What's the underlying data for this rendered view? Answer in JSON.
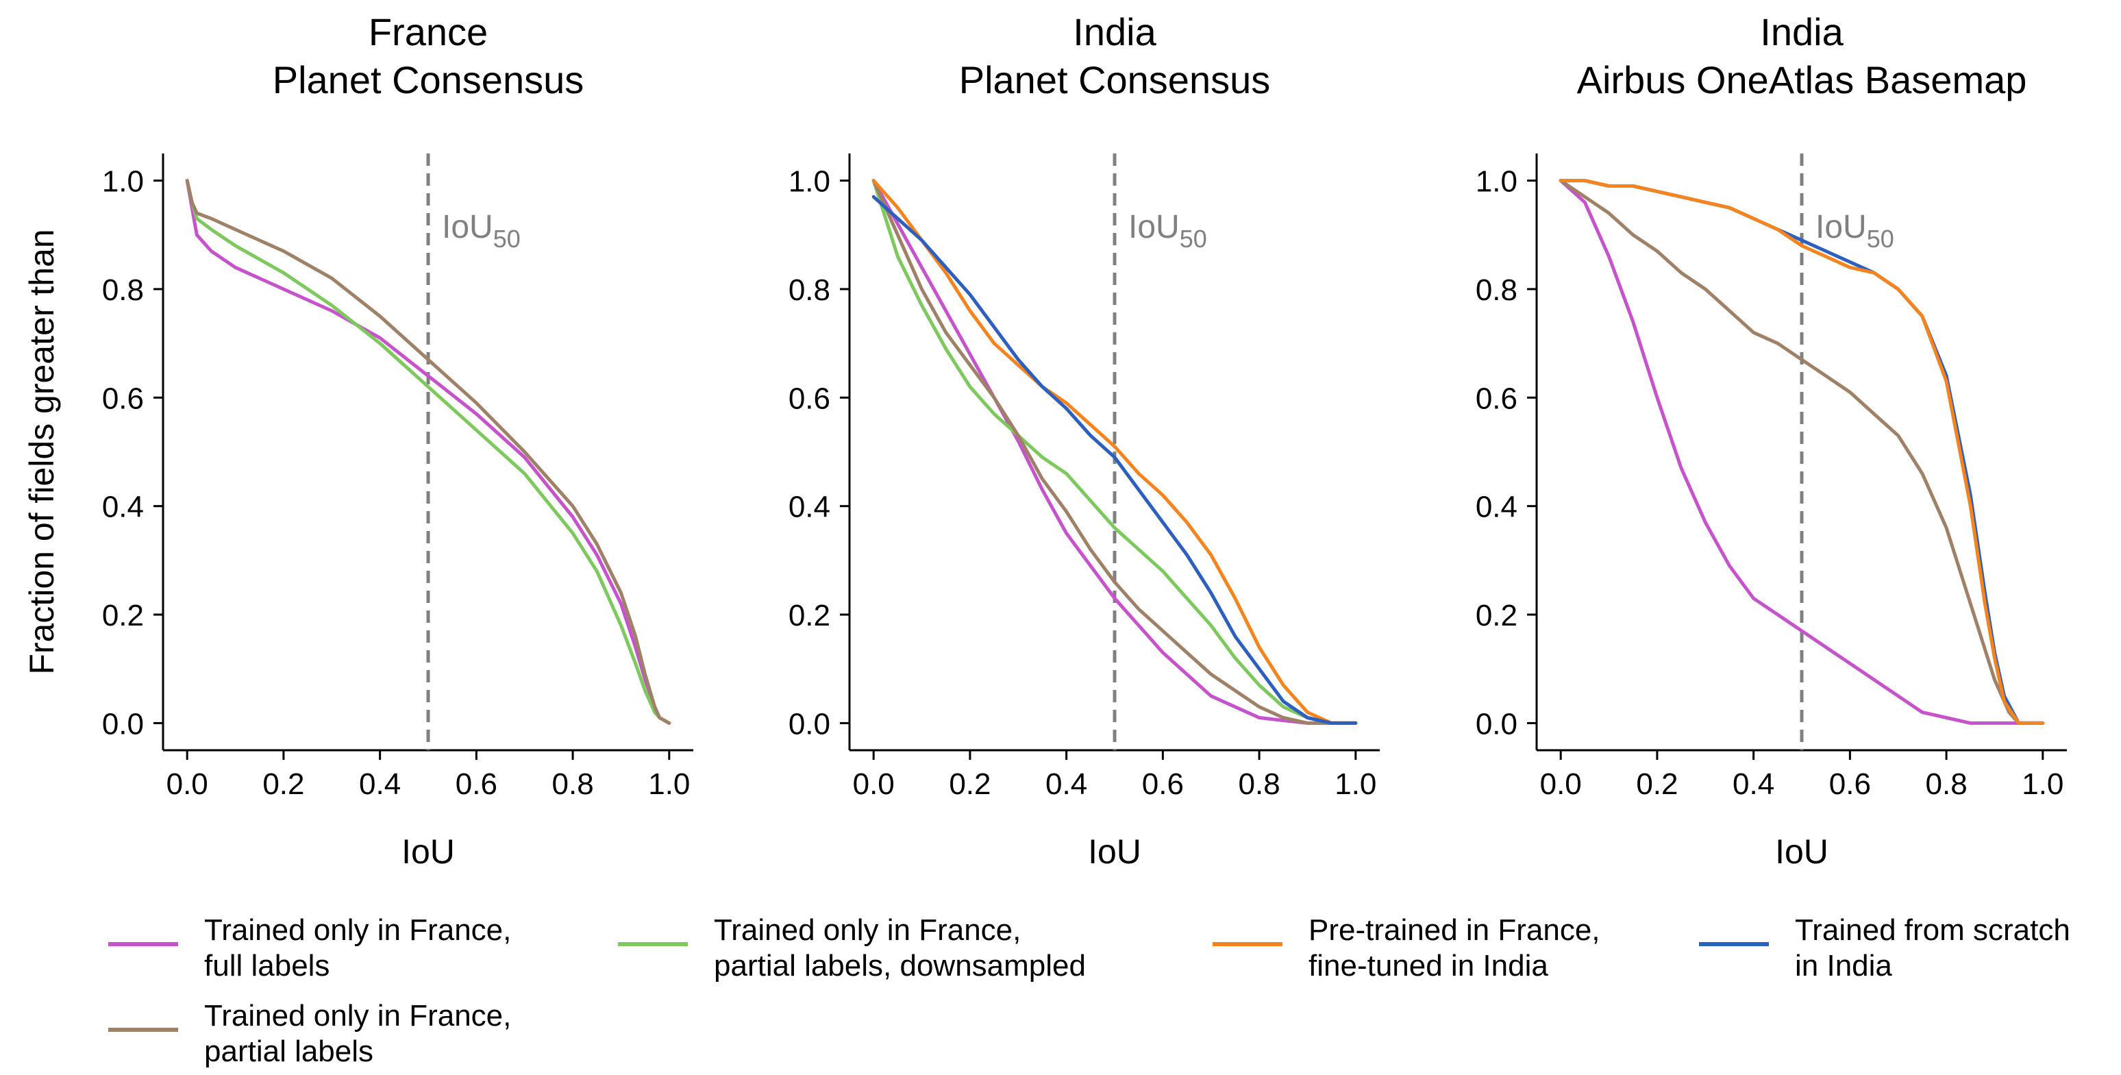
{
  "chart_data": [
    {
      "type": "line",
      "title": [
        "France",
        "Planet Consensus"
      ],
      "xlabel": "IoU",
      "ylabel": "Fraction of fields greater than",
      "xlim": [
        -0.05,
        1.05
      ],
      "ylim": [
        -0.05,
        1.05
      ],
      "xticks": [
        "0.0",
        "0.2",
        "0.4",
        "0.6",
        "0.8",
        "1.0"
      ],
      "yticks": [
        "0.0",
        "0.2",
        "0.4",
        "0.6",
        "0.8",
        "1.0"
      ],
      "reference_line": {
        "x": 0.5,
        "label": "IoU",
        "subscript": "50"
      },
      "series": [
        {
          "key": "full",
          "x": [
            0,
            0.01,
            0.02,
            0.05,
            0.1,
            0.2,
            0.3,
            0.4,
            0.5,
            0.6,
            0.7,
            0.8,
            0.85,
            0.9,
            0.93,
            0.95,
            0.97,
            0.98,
            1.0
          ],
          "y": [
            1.0,
            0.95,
            0.9,
            0.87,
            0.84,
            0.8,
            0.76,
            0.71,
            0.64,
            0.57,
            0.49,
            0.38,
            0.31,
            0.22,
            0.14,
            0.08,
            0.03,
            0.01,
            0.0
          ]
        },
        {
          "key": "partial_down",
          "x": [
            0,
            0.01,
            0.02,
            0.05,
            0.1,
            0.2,
            0.3,
            0.4,
            0.5,
            0.6,
            0.7,
            0.8,
            0.85,
            0.9,
            0.93,
            0.95,
            0.97,
            0.98,
            1.0
          ],
          "y": [
            1.0,
            0.96,
            0.93,
            0.91,
            0.88,
            0.83,
            0.77,
            0.7,
            0.62,
            0.54,
            0.46,
            0.35,
            0.28,
            0.18,
            0.11,
            0.06,
            0.02,
            0.01,
            0.0
          ]
        },
        {
          "key": "partial",
          "x": [
            0,
            0.01,
            0.02,
            0.05,
            0.1,
            0.2,
            0.3,
            0.4,
            0.5,
            0.6,
            0.7,
            0.8,
            0.85,
            0.9,
            0.93,
            0.95,
            0.97,
            0.98,
            1.0
          ],
          "y": [
            1.0,
            0.96,
            0.94,
            0.93,
            0.91,
            0.87,
            0.82,
            0.75,
            0.67,
            0.59,
            0.5,
            0.4,
            0.33,
            0.24,
            0.16,
            0.09,
            0.03,
            0.01,
            0.0
          ]
        }
      ]
    },
    {
      "type": "line",
      "title": [
        "India",
        "Planet Consensus"
      ],
      "xlabel": "IoU",
      "xlim": [
        -0.05,
        1.05
      ],
      "ylim": [
        -0.05,
        1.05
      ],
      "xticks": [
        "0.0",
        "0.2",
        "0.4",
        "0.6",
        "0.8",
        "1.0"
      ],
      "yticks": [
        "0.0",
        "0.2",
        "0.4",
        "0.6",
        "0.8",
        "1.0"
      ],
      "reference_line": {
        "x": 0.5,
        "label": "IoU",
        "subscript": "50"
      },
      "series": [
        {
          "key": "full",
          "x": [
            0,
            0.05,
            0.1,
            0.15,
            0.2,
            0.25,
            0.3,
            0.35,
            0.4,
            0.45,
            0.5,
            0.55,
            0.6,
            0.65,
            0.7,
            0.75,
            0.8,
            0.85,
            0.9,
            1.0
          ],
          "y": [
            1.0,
            0.92,
            0.84,
            0.76,
            0.68,
            0.6,
            0.52,
            0.43,
            0.35,
            0.29,
            0.23,
            0.18,
            0.13,
            0.09,
            0.05,
            0.03,
            0.01,
            0.005,
            0.0,
            0.0
          ]
        },
        {
          "key": "partial_down",
          "x": [
            0,
            0.05,
            0.1,
            0.15,
            0.2,
            0.25,
            0.3,
            0.35,
            0.4,
            0.45,
            0.5,
            0.55,
            0.6,
            0.65,
            0.7,
            0.75,
            0.8,
            0.85,
            0.9,
            0.95,
            1.0
          ],
          "y": [
            1.0,
            0.86,
            0.77,
            0.69,
            0.62,
            0.57,
            0.53,
            0.49,
            0.46,
            0.41,
            0.36,
            0.32,
            0.28,
            0.23,
            0.18,
            0.12,
            0.07,
            0.03,
            0.01,
            0.0,
            0.0
          ]
        },
        {
          "key": "partial",
          "x": [
            0,
            0.05,
            0.1,
            0.15,
            0.2,
            0.25,
            0.3,
            0.35,
            0.4,
            0.45,
            0.5,
            0.55,
            0.6,
            0.65,
            0.7,
            0.75,
            0.8,
            0.85,
            0.9,
            0.95,
            1.0
          ],
          "y": [
            1.0,
            0.9,
            0.8,
            0.72,
            0.66,
            0.6,
            0.53,
            0.45,
            0.39,
            0.32,
            0.26,
            0.21,
            0.17,
            0.13,
            0.09,
            0.06,
            0.03,
            0.01,
            0.0,
            0.0,
            0.0
          ]
        },
        {
          "key": "pretrained",
          "x": [
            0,
            0.05,
            0.1,
            0.15,
            0.2,
            0.25,
            0.3,
            0.35,
            0.4,
            0.45,
            0.5,
            0.55,
            0.6,
            0.65,
            0.7,
            0.75,
            0.8,
            0.85,
            0.9,
            0.95,
            1.0
          ],
          "y": [
            1.0,
            0.95,
            0.89,
            0.83,
            0.76,
            0.7,
            0.66,
            0.62,
            0.59,
            0.55,
            0.51,
            0.46,
            0.42,
            0.37,
            0.31,
            0.23,
            0.14,
            0.07,
            0.02,
            0.0,
            0.0
          ]
        },
        {
          "key": "scratch",
          "x": [
            0,
            0.05,
            0.1,
            0.15,
            0.2,
            0.25,
            0.3,
            0.35,
            0.4,
            0.45,
            0.5,
            0.55,
            0.6,
            0.65,
            0.7,
            0.75,
            0.8,
            0.85,
            0.9,
            0.95,
            1.0
          ],
          "y": [
            0.97,
            0.93,
            0.89,
            0.84,
            0.79,
            0.73,
            0.67,
            0.62,
            0.58,
            0.53,
            0.49,
            0.43,
            0.37,
            0.31,
            0.24,
            0.16,
            0.1,
            0.04,
            0.01,
            0.0,
            0.0
          ]
        }
      ]
    },
    {
      "type": "line",
      "title": [
        "India",
        "Airbus OneAtlas Basemap"
      ],
      "xlabel": "IoU",
      "xlim": [
        -0.05,
        1.05
      ],
      "ylim": [
        -0.05,
        1.05
      ],
      "xticks": [
        "0.0",
        "0.2",
        "0.4",
        "0.6",
        "0.8",
        "1.0"
      ],
      "yticks": [
        "0.0",
        "0.2",
        "0.4",
        "0.6",
        "0.8",
        "1.0"
      ],
      "reference_line": {
        "x": 0.5,
        "label": "IoU",
        "subscript": "50"
      },
      "series": [
        {
          "key": "full",
          "x": [
            0,
            0.05,
            0.1,
            0.15,
            0.2,
            0.25,
            0.3,
            0.35,
            0.4,
            0.45,
            0.5,
            0.55,
            0.6,
            0.65,
            0.7,
            0.75,
            0.8,
            0.85,
            0.9,
            0.95,
            1.0
          ],
          "y": [
            1.0,
            0.96,
            0.86,
            0.74,
            0.6,
            0.47,
            0.37,
            0.29,
            0.23,
            0.2,
            0.17,
            0.14,
            0.11,
            0.08,
            0.05,
            0.02,
            0.01,
            0.0,
            0.0,
            0.0,
            0.0
          ]
        },
        {
          "key": "partial",
          "x": [
            0,
            0.05,
            0.1,
            0.15,
            0.2,
            0.25,
            0.3,
            0.35,
            0.4,
            0.45,
            0.5,
            0.55,
            0.6,
            0.65,
            0.7,
            0.75,
            0.8,
            0.85,
            0.9,
            0.93,
            0.95,
            1.0
          ],
          "y": [
            1.0,
            0.97,
            0.94,
            0.9,
            0.87,
            0.83,
            0.8,
            0.76,
            0.72,
            0.7,
            0.67,
            0.64,
            0.61,
            0.57,
            0.53,
            0.46,
            0.36,
            0.22,
            0.08,
            0.02,
            0.0,
            0.0
          ]
        },
        {
          "key": "scratch",
          "x": [
            0,
            0.05,
            0.1,
            0.15,
            0.2,
            0.25,
            0.3,
            0.35,
            0.4,
            0.45,
            0.5,
            0.55,
            0.6,
            0.65,
            0.7,
            0.75,
            0.8,
            0.85,
            0.88,
            0.9,
            0.92,
            0.95,
            1.0
          ],
          "y": [
            1.0,
            1.0,
            0.99,
            0.99,
            0.98,
            0.97,
            0.96,
            0.95,
            0.93,
            0.91,
            0.89,
            0.87,
            0.85,
            0.83,
            0.8,
            0.75,
            0.64,
            0.42,
            0.24,
            0.13,
            0.05,
            0.0,
            0.0
          ]
        },
        {
          "key": "pretrained",
          "x": [
            0,
            0.05,
            0.1,
            0.15,
            0.2,
            0.25,
            0.3,
            0.35,
            0.4,
            0.45,
            0.5,
            0.55,
            0.6,
            0.65,
            0.7,
            0.75,
            0.8,
            0.85,
            0.88,
            0.9,
            0.92,
            0.95,
            1.0
          ],
          "y": [
            1.0,
            1.0,
            0.99,
            0.99,
            0.98,
            0.97,
            0.96,
            0.95,
            0.93,
            0.91,
            0.88,
            0.86,
            0.84,
            0.83,
            0.8,
            0.75,
            0.63,
            0.4,
            0.22,
            0.12,
            0.04,
            0.0,
            0.0
          ]
        }
      ]
    }
  ],
  "legend": [
    {
      "key": "full",
      "color": "#c653cc",
      "lines": [
        "Trained only in France,",
        "full labels"
      ]
    },
    {
      "key": "partial",
      "color": "#9e8167",
      "lines": [
        "Trained only in France,",
        "partial labels"
      ]
    },
    {
      "key": "partial_down",
      "color": "#7dc95e",
      "lines": [
        "Trained only in France,",
        "partial labels, downsampled"
      ]
    },
    {
      "key": "pretrained",
      "color": "#f5841f",
      "lines": [
        "Pre-trained in France,",
        "fine-tuned in India"
      ]
    },
    {
      "key": "scratch",
      "color": "#2d5fbf",
      "lines": [
        "Trained from scratch",
        "in India"
      ]
    }
  ],
  "colors": {
    "full": "#c653cc",
    "partial": "#9e8167",
    "partial_down": "#7dc95e",
    "pretrained": "#f5841f",
    "scratch": "#2d5fbf",
    "reference": "#808080"
  }
}
